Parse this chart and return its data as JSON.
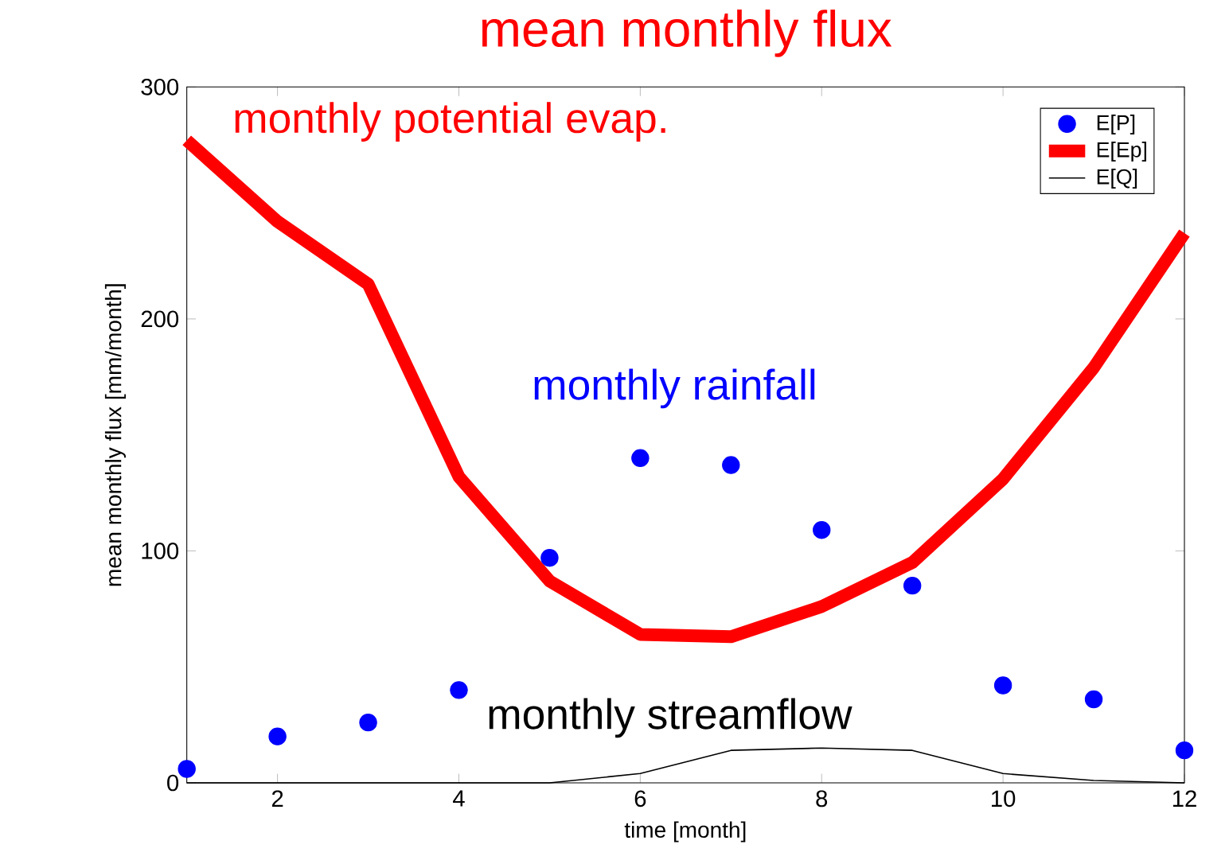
{
  "chart_data": {
    "type": "line",
    "title": "mean monthly flux",
    "xlabel": "time [month]",
    "ylabel": "mean monthly flux [mm/month]",
    "x": [
      1,
      2,
      3,
      4,
      5,
      6,
      7,
      8,
      9,
      10,
      11,
      12
    ],
    "series": [
      {
        "name": "E[P]",
        "type": "scatter",
        "color": "#0000ff",
        "values": [
          6,
          20,
          26,
          40,
          97,
          140,
          137,
          109,
          85,
          42,
          36,
          14
        ]
      },
      {
        "name": "E[Ep]",
        "color": "#ff0000",
        "values": [
          277,
          242,
          215,
          132,
          87,
          64,
          63,
          76,
          95,
          131,
          179,
          237
        ]
      },
      {
        "name": "E[Q]",
        "color": "#000000",
        "values": [
          0,
          0,
          0,
          0,
          0,
          4,
          14,
          15,
          14,
          4,
          1,
          0
        ]
      }
    ],
    "annotations": [
      "monthly rainfall",
      "monthly potential evap.",
      "monthly streamflow"
    ],
    "xlim": [
      1,
      12
    ],
    "xticks": [
      2,
      4,
      6,
      8,
      10,
      12
    ],
    "ylim": [
      0,
      300
    ],
    "yticks": [
      0,
      100,
      200,
      300
    ],
    "legend": "top right",
    "grid": false
  }
}
